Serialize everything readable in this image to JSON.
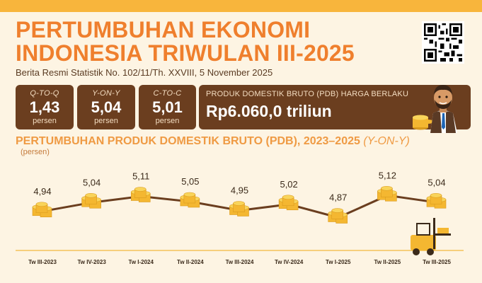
{
  "header": {
    "title_line1": "PERTUMBUHAN EKONOMI",
    "title_line2": "INDONESIA TRIWULAN III-2025",
    "subtitle": "Berita Resmi Statistik No. 102/11/Th. XXVIII, 5 November 2025"
  },
  "stats": [
    {
      "label": "Q-TO-Q",
      "value": "1,43",
      "unit": "persen"
    },
    {
      "label": "Y-ON-Y",
      "value": "5,04",
      "unit": "persen"
    },
    {
      "label": "C-TO-C",
      "value": "5,01",
      "unit": "persen"
    }
  ],
  "pdb": {
    "label": "PRODUK DOMESTIK BRUTO (PDB) HARGA BERLAKU",
    "value": "Rp6.060,0 triliun"
  },
  "chart_title_main": "PERTUMBUHAN PRODUK DOMESTIK BRUTO (PDB), 2023–2025 ",
  "chart_title_italic": "(Y-ON-Y)",
  "chart_unit": "(persen)",
  "colors": {
    "orange_title": "#ef7f2d",
    "brown_box": "#6b3e1f",
    "line": "#6b3e1f",
    "coin": "#f4b731"
  },
  "chart_data": {
    "type": "line",
    "title": "PERTUMBUHAN PRODUK DOMESTIK BRUTO (PDB), 2023–2025 (Y-ON-Y)",
    "ylabel": "(persen)",
    "categories": [
      "Tw III-2023",
      "Tw IV-2023",
      "Tw I-2024",
      "Tw II-2024",
      "Tw III-2024",
      "Tw IV-2024",
      "Tw I-2025",
      "Tw II-2025",
      "Tw III-2025"
    ],
    "values": [
      4.94,
      5.04,
      5.11,
      5.05,
      4.95,
      5.02,
      4.87,
      5.12,
      5.04
    ],
    "value_labels": [
      "4,94",
      "5,04",
      "5,11",
      "5,05",
      "4,95",
      "5,02",
      "4,87",
      "5,12",
      "5,04"
    ],
    "grid": false
  }
}
